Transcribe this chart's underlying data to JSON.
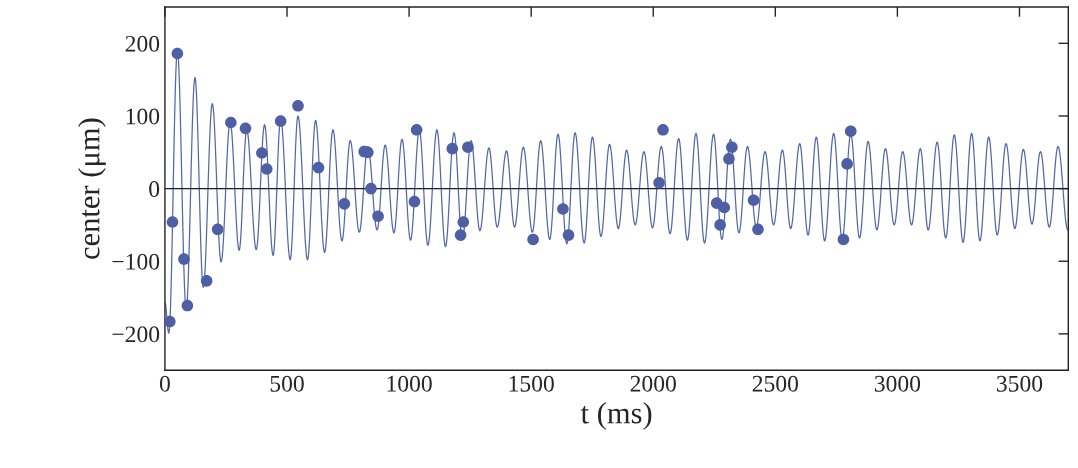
{
  "chart_data": {
    "type": "line",
    "xlabel": "t (ms)",
    "ylabel": "center (μm)",
    "xlim": [
      0,
      3700
    ],
    "ylim": [
      -250,
      250
    ],
    "xticks": [
      0,
      500,
      1000,
      1500,
      2000,
      2500,
      3000,
      3500
    ],
    "yticks": [
      -200,
      -100,
      0,
      100,
      200
    ],
    "grid": false,
    "legend": false,
    "ref_lines": [
      {
        "axis": "y",
        "value": 0,
        "color": "#1a1a2a",
        "line_style": "solid"
      }
    ],
    "series": [
      {
        "color": "#5468a8",
        "line_style": "solid",
        "marker": "none",
        "x": [
          0,
          16,
          51,
          87,
          123,
          157,
          194,
          230,
          267,
          304,
          335,
          374,
          408,
          443,
          474,
          513,
          545,
          584,
          617,
          654,
          688,
          725,
          759,
          796,
          831,
          869,
          902,
          938,
          971,
          1006,
          1042,
          1077,
          1114,
          1149,
          1184,
          1218,
          1254,
          1290,
          1327,
          1361,
          1399,
          1432,
          1468,
          1505,
          1539,
          1576,
          1610,
          1646,
          1680,
          1717,
          1751,
          1786,
          1821,
          1857,
          1891,
          1926,
          1962,
          1997,
          2033,
          2069,
          2104,
          2140,
          2175,
          2210,
          2247,
          2281,
          2316,
          2351,
          2386,
          2422,
          2458,
          2493,
          2529,
          2563,
          2600,
          2634,
          2668,
          2702,
          2739,
          2774,
          2809,
          2845,
          2880,
          2916,
          2951,
          2987,
          3022,
          3058,
          3094,
          3126,
          3163,
          3198,
          3233,
          3269,
          3304,
          3338,
          3374,
          3409,
          3445,
          3481,
          3516,
          3551,
          3586,
          3622,
          3658,
          3698
        ],
        "values": [
          -157,
          -199,
          190,
          -166,
          153,
          -136,
          117,
          -101,
          92,
          -85,
          81,
          -84,
          88,
          -92,
          96,
          -98,
          100,
          -98,
          94,
          -88,
          81,
          -72,
          66,
          -60,
          58,
          -57,
          60,
          -61,
          68,
          -71,
          81,
          -78,
          81,
          -80,
          77,
          -71,
          66,
          -58,
          56,
          -53,
          52,
          -53,
          57,
          -60,
          66,
          -70,
          75,
          -76,
          77,
          -75,
          71,
          -66,
          61,
          -55,
          53,
          -50,
          51,
          -54,
          58,
          -62,
          69,
          -71,
          76,
          -75,
          75,
          -70,
          68,
          -61,
          58,
          -53,
          51,
          -50,
          53,
          -55,
          62,
          -64,
          71,
          -72,
          76,
          -70,
          75,
          -68,
          65,
          -57,
          55,
          -50,
          51,
          -50,
          55,
          -57,
          64,
          -68,
          74,
          -74,
          76,
          -72,
          71,
          -64,
          62,
          -55,
          54,
          -49,
          51,
          -53,
          58,
          -57
        ]
      },
      {
        "type": "scatter",
        "color": "#4f5fa6",
        "marker": "circle",
        "x": [
          20,
          31,
          51,
          78,
          92,
          171,
          216,
          270,
          330,
          397,
          417,
          474,
          545,
          629,
          735,
          816,
          831,
          844,
          873,
          1022,
          1031,
          1177,
          1211,
          1222,
          1241,
          1508,
          1630,
          1653,
          2024,
          2040,
          2260,
          2274,
          2291,
          2310,
          2322,
          2411,
          2429,
          2779,
          2794,
          2809
        ],
        "values": [
          -183,
          -46,
          186,
          -97,
          -161,
          -127,
          -56,
          91,
          83,
          49,
          27,
          93,
          114,
          29,
          -21,
          51,
          50,
          0,
          -38,
          -18,
          81,
          55,
          -64,
          -46,
          57,
          -70,
          -28,
          -64,
          8,
          81,
          -20,
          -50,
          -26,
          41,
          57,
          -16,
          -56,
          -70,
          34,
          79
        ]
      }
    ]
  }
}
